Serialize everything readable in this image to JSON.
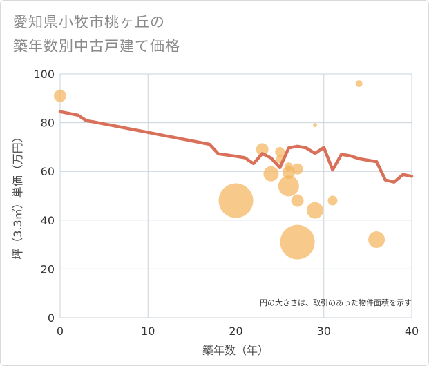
{
  "title_lines": [
    "愛知県小牧市桃ヶ丘の",
    "築年数別中古戸建て価格"
  ],
  "chart_data": {
    "type": "scatter+line",
    "title": "愛知県小牧市桃ヶ丘の築年数別中古戸建て価格",
    "xlabel": "築年数（年）",
    "ylabel": "坪（3.3㎡）単価（万円）",
    "xlim": [
      0,
      40
    ],
    "ylim": [
      0,
      100
    ],
    "x_ticks": [
      0,
      10,
      20,
      30,
      40
    ],
    "y_ticks": [
      0,
      20,
      40,
      60,
      80,
      100
    ],
    "grid": true,
    "annotation": "円の大きさは、取引のあった物件面積を示す",
    "colors": {
      "line": "#d9705a",
      "bubble": "#f4b45a",
      "grid": "#c9d3dc"
    },
    "trend_line": {
      "x": [
        0,
        1,
        2,
        3,
        4,
        5,
        6,
        7,
        8,
        9,
        10,
        11,
        12,
        13,
        14,
        15,
        16,
        17,
        18,
        19,
        20,
        21,
        22,
        23,
        24,
        25,
        26,
        27,
        28,
        29,
        30,
        31,
        32,
        33,
        34,
        35,
        36,
        37,
        38,
        39,
        40
      ],
      "y": [
        84.5,
        83.8,
        83.1,
        80.8,
        80.2,
        79.5,
        78.8,
        78.1,
        77.4,
        76.7,
        76.0,
        75.3,
        74.6,
        73.9,
        73.2,
        72.5,
        71.8,
        71.1,
        67.2,
        66.7,
        66.2,
        65.6,
        63.2,
        67.3,
        65.5,
        61.5,
        69.6,
        70.3,
        69.6,
        67.4,
        69.8,
        60.6,
        67.0,
        66.4,
        65.2,
        64.6,
        64.0,
        56.5,
        55.6,
        58.7,
        58.0
      ]
    },
    "bubbles": [
      {
        "x": 0,
        "y": 91,
        "size": 9
      },
      {
        "x": 20,
        "y": 48,
        "size": 25
      },
      {
        "x": 23,
        "y": 69,
        "size": 9
      },
      {
        "x": 24,
        "y": 59,
        "size": 11
      },
      {
        "x": 25,
        "y": 68,
        "size": 7
      },
      {
        "x": 25,
        "y": 65,
        "size": 6
      },
      {
        "x": 26,
        "y": 62,
        "size": 6
      },
      {
        "x": 26,
        "y": 59.5,
        "size": 9
      },
      {
        "x": 26,
        "y": 54,
        "size": 15
      },
      {
        "x": 27,
        "y": 61,
        "size": 8
      },
      {
        "x": 27,
        "y": 48,
        "size": 9
      },
      {
        "x": 27,
        "y": 31,
        "size": 25
      },
      {
        "x": 29,
        "y": 79,
        "size": 3
      },
      {
        "x": 29,
        "y": 44,
        "size": 12
      },
      {
        "x": 31,
        "y": 48,
        "size": 7
      },
      {
        "x": 34,
        "y": 96,
        "size": 5
      },
      {
        "x": 36,
        "y": 32,
        "size": 12
      }
    ]
  }
}
